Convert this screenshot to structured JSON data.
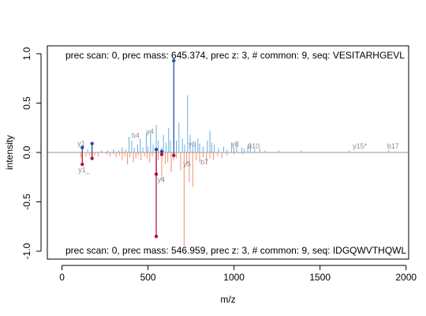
{
  "chart_data": {
    "type": "mirror-spectrum",
    "xlabel": "m/z",
    "ylabel": "intensity",
    "xlim": [
      -85,
      2015
    ],
    "ylim": [
      -1.08,
      1.08
    ],
    "xticks": [
      "0",
      "500",
      "1000",
      "1500",
      "2000"
    ],
    "xtick_values": [
      0,
      500,
      1000,
      1500,
      2000
    ],
    "yticks": [
      "-1.0",
      "-0.5",
      "0.0",
      "0.5",
      "1.0"
    ],
    "ytick_values": [
      -1.0,
      -0.5,
      0.0,
      0.5,
      1.0
    ],
    "top_caption": "prec scan: 0, prec mass: 645.374, prec z: 3, # common: 9, seq: VESITARHGEVL",
    "bottom_caption": "prec scan: 0, prec mass: 546.959, prec z: 3, # common: 9, seq: IDGQWVTHQWL",
    "colors": {
      "top_peaks": "#6aaee0",
      "top_matched": "#2a4aa8",
      "bottom_peaks": "#f0906a",
      "bottom_matched": "#b0103a",
      "zero_line": "#999999",
      "annotation": "#8c8c8c"
    },
    "top_peaks": [
      [
        118,
        0.05
      ],
      [
        150,
        0.03
      ],
      [
        175,
        0.09
      ],
      [
        230,
        0.02
      ],
      [
        265,
        0.02
      ],
      [
        300,
        0.03
      ],
      [
        330,
        0.02
      ],
      [
        350,
        0.05
      ],
      [
        370,
        0.03
      ],
      [
        390,
        0.16
      ],
      [
        405,
        0.12
      ],
      [
        420,
        0.05
      ],
      [
        440,
        0.08
      ],
      [
        455,
        0.14
      ],
      [
        470,
        0.05
      ],
      [
        490,
        0.2
      ],
      [
        500,
        0.06
      ],
      [
        515,
        0.22
      ],
      [
        530,
        0.08
      ],
      [
        548,
        0.28
      ],
      [
        560,
        0.12
      ],
      [
        578,
        0.05
      ],
      [
        590,
        0.18
      ],
      [
        605,
        0.1
      ],
      [
        620,
        0.25
      ],
      [
        630,
        0.12
      ],
      [
        650,
        0.93
      ],
      [
        665,
        0.12
      ],
      [
        680,
        0.3
      ],
      [
        700,
        0.14
      ],
      [
        713,
        0.08
      ],
      [
        730,
        0.58
      ],
      [
        745,
        0.18
      ],
      [
        760,
        0.08
      ],
      [
        775,
        0.1
      ],
      [
        790,
        0.14
      ],
      [
        800,
        0.09
      ],
      [
        820,
        0.06
      ],
      [
        845,
        0.12
      ],
      [
        860,
        0.22
      ],
      [
        870,
        0.1
      ],
      [
        885,
        0.08
      ],
      [
        910,
        0.04
      ],
      [
        940,
        0.06
      ],
      [
        960,
        0.03
      ],
      [
        985,
        0.1
      ],
      [
        1000,
        0.05
      ],
      [
        1015,
        0.08
      ],
      [
        1045,
        0.05
      ],
      [
        1060,
        0.04
      ],
      [
        1080,
        0.07
      ],
      [
        1095,
        0.1
      ],
      [
        1120,
        0.03
      ],
      [
        1150,
        0.04
      ],
      [
        1180,
        0.02
      ],
      [
        1260,
        0.02
      ],
      [
        1390,
        0.02
      ],
      [
        1670,
        0.02
      ],
      [
        1900,
        0.02
      ],
      [
        1930,
        0.01
      ]
    ],
    "top_matched": [
      [
        118,
        0.05,
        "y1"
      ],
      [
        175,
        0.09,
        ""
      ],
      [
        548,
        0.03,
        "y4"
      ],
      [
        580,
        0.01,
        ""
      ],
      [
        650,
        0.93,
        ""
      ]
    ],
    "bottom_peaks": [
      [
        110,
        -0.05
      ],
      [
        118,
        -0.1
      ],
      [
        140,
        -0.04
      ],
      [
        160,
        -0.03
      ],
      [
        175,
        -0.06
      ],
      [
        190,
        -0.03
      ],
      [
        210,
        -0.04
      ],
      [
        260,
        -0.02
      ],
      [
        280,
        -0.04
      ],
      [
        300,
        -0.02
      ],
      [
        315,
        -0.05
      ],
      [
        335,
        -0.03
      ],
      [
        350,
        -0.08
      ],
      [
        365,
        -0.04
      ],
      [
        380,
        -0.12
      ],
      [
        395,
        -0.05
      ],
      [
        415,
        -0.1
      ],
      [
        430,
        -0.06
      ],
      [
        445,
        -0.03
      ],
      [
        460,
        -0.08
      ],
      [
        480,
        -0.04
      ],
      [
        495,
        -0.06
      ],
      [
        510,
        -0.1
      ],
      [
        525,
        -0.04
      ],
      [
        548,
        -0.22
      ],
      [
        560,
        -0.08
      ],
      [
        580,
        -0.28
      ],
      [
        600,
        -0.12
      ],
      [
        615,
        -0.1
      ],
      [
        635,
        -0.2
      ],
      [
        648,
        -0.08
      ],
      [
        665,
        -0.06
      ],
      [
        690,
        -0.18
      ],
      [
        710,
        -0.95
      ],
      [
        725,
        -0.12
      ],
      [
        740,
        -0.3
      ],
      [
        760,
        -0.35
      ],
      [
        780,
        -0.08
      ],
      [
        800,
        -0.1
      ],
      [
        820,
        -0.05
      ],
      [
        840,
        -0.12
      ],
      [
        860,
        -0.06
      ],
      [
        880,
        -0.08
      ],
      [
        905,
        -0.04
      ],
      [
        930,
        -0.06
      ],
      [
        960,
        -0.03
      ],
      [
        1000,
        -0.02
      ],
      [
        1050,
        -0.02
      ]
    ],
    "bottom_matched": [
      [
        118,
        -0.12,
        "y1_"
      ],
      [
        175,
        -0.06,
        ""
      ],
      [
        548,
        -0.22,
        "y4"
      ],
      [
        548,
        -0.85,
        ""
      ],
      [
        580,
        -0.02,
        ""
      ],
      [
        650,
        -0.03,
        ""
      ]
    ],
    "annotations": [
      {
        "x": 90,
        "y": 0.07,
        "text": "y1"
      },
      {
        "x": 405,
        "y": 0.15,
        "text": "b4"
      },
      {
        "x": 490,
        "y": 0.19,
        "text": "y4"
      },
      {
        "x": 735,
        "y": 0.06,
        "text": "y6"
      },
      {
        "x": 985,
        "y": 0.06,
        "text": "y8"
      },
      {
        "x": 1080,
        "y": 0.04,
        "text": "b10"
      },
      {
        "x": 1690,
        "y": 0.04,
        "text": "y15*"
      },
      {
        "x": 1890,
        "y": 0.04,
        "text": "b17"
      },
      {
        "x": 95,
        "y": -0.2,
        "text": "y1_"
      },
      {
        "x": 555,
        "y": -0.3,
        "text": "y4"
      },
      {
        "x": 705,
        "y": -0.14,
        "text": "y5"
      },
      {
        "x": 805,
        "y": -0.12,
        "text": "b7"
      }
    ]
  }
}
